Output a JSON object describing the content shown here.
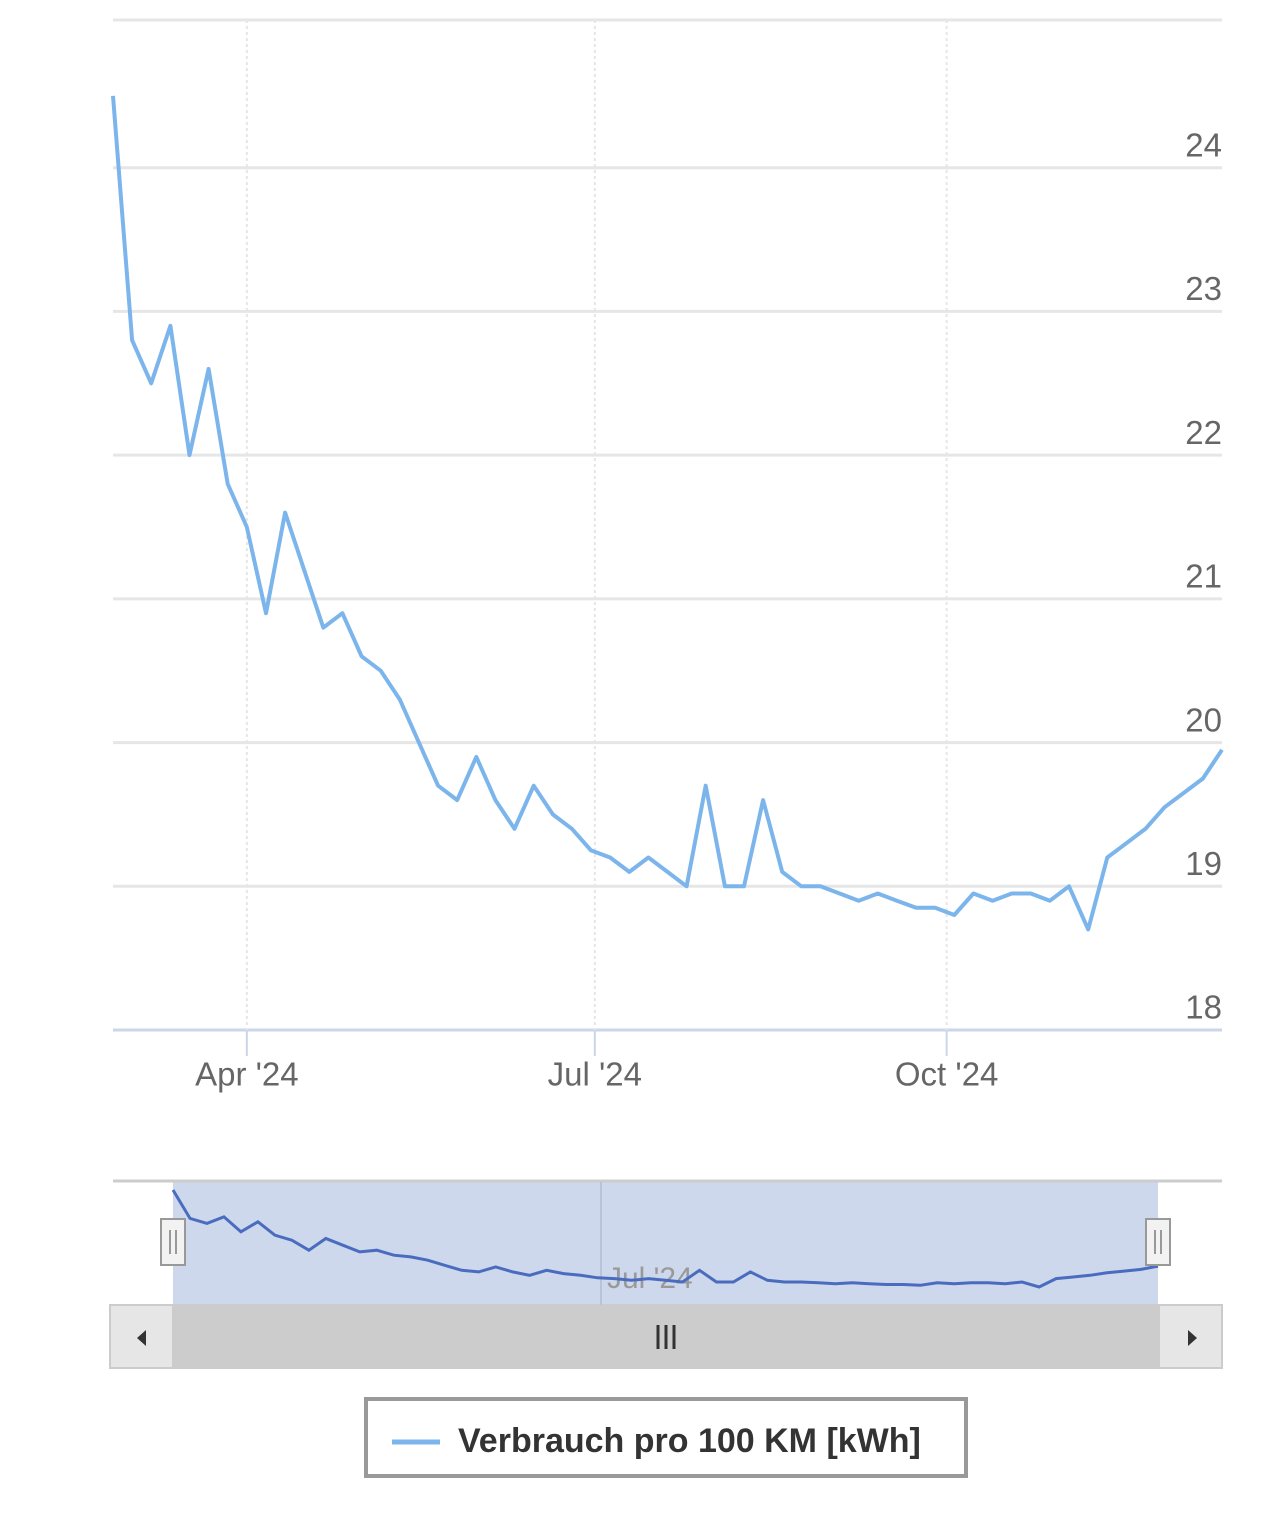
{
  "chart_data": {
    "type": "line",
    "x": [
      "2024-02-26",
      "2024-03-02",
      "2024-03-07",
      "2024-03-12",
      "2024-03-17",
      "2024-03-22",
      "2024-03-27",
      "2024-04-01",
      "2024-04-06",
      "2024-04-11",
      "2024-04-16",
      "2024-04-21",
      "2024-04-26",
      "2024-05-01",
      "2024-05-06",
      "2024-05-11",
      "2024-05-16",
      "2024-05-21",
      "2024-05-26",
      "2024-05-31",
      "2024-06-05",
      "2024-06-10",
      "2024-06-15",
      "2024-06-20",
      "2024-06-25",
      "2024-06-30",
      "2024-07-05",
      "2024-07-10",
      "2024-07-15",
      "2024-07-20",
      "2024-07-25",
      "2024-07-30",
      "2024-08-04",
      "2024-08-09",
      "2024-08-14",
      "2024-08-19",
      "2024-08-24",
      "2024-08-29",
      "2024-09-03",
      "2024-09-08",
      "2024-09-13",
      "2024-09-18",
      "2024-09-23",
      "2024-09-28",
      "2024-10-03",
      "2024-10-08",
      "2024-10-13",
      "2024-10-18",
      "2024-10-23",
      "2024-10-28",
      "2024-11-02",
      "2024-11-07",
      "2024-11-12",
      "2024-11-17",
      "2024-11-22",
      "2024-11-27",
      "2024-12-02",
      "2024-12-07",
      "2024-12-12"
    ],
    "series": [
      {
        "name": "Verbrauch pro 100 KM [kWh]",
        "color": "#7cb5ec",
        "values": [
          24.5,
          22.8,
          22.5,
          22.9,
          22.0,
          22.6,
          21.8,
          21.5,
          20.9,
          21.6,
          21.2,
          20.8,
          20.9,
          20.6,
          20.5,
          20.3,
          20.0,
          19.7,
          19.6,
          19.9,
          19.6,
          19.4,
          19.7,
          19.5,
          19.4,
          19.25,
          19.2,
          19.1,
          19.2,
          19.1,
          19.0,
          19.7,
          19.0,
          19.0,
          19.6,
          19.1,
          19.0,
          19.0,
          18.95,
          18.9,
          18.95,
          18.9,
          18.85,
          18.85,
          18.8,
          18.95,
          18.9,
          18.95,
          18.95,
          18.9,
          19.0,
          18.7,
          19.2,
          19.3,
          19.4,
          19.55,
          19.65,
          19.75,
          19.95
        ]
      }
    ],
    "xlim": [
      "2024-02-26",
      "2024-12-12"
    ],
    "xticks": [
      {
        "value": "2024-04-01",
        "label": "Apr '24"
      },
      {
        "value": "2024-07-01",
        "label": "Jul '24"
      },
      {
        "value": "2024-10-01",
        "label": "Oct '24"
      }
    ],
    "ylim": [
      18,
      25
    ],
    "yticks": [
      18,
      19,
      20,
      21,
      22,
      23,
      24
    ],
    "grid": true,
    "navigator": {
      "color": "#4a6cbf",
      "mask_color": "#cdd8ec",
      "xticks": [
        {
          "value": "2024-07-01",
          "label": "Jul '24"
        }
      ]
    }
  }
}
